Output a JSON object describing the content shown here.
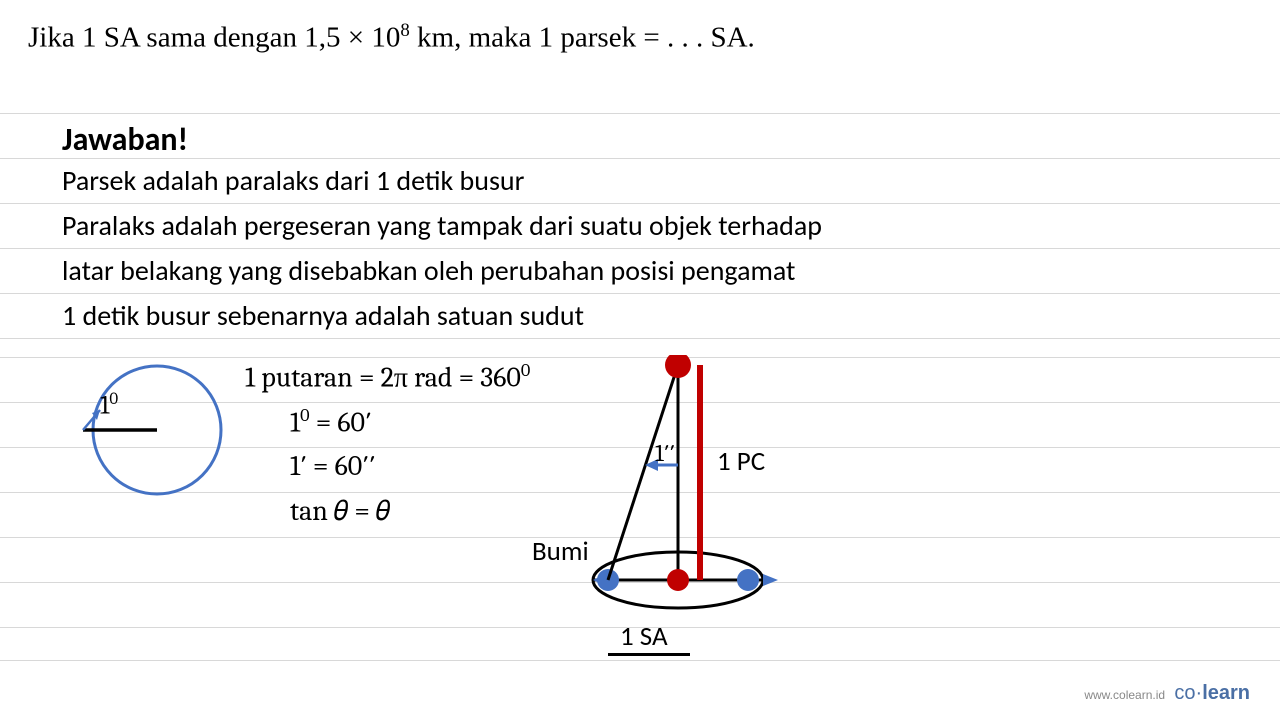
{
  "question": {
    "prefix": "Jika 1 SA sama dengan 1,5 × 10",
    "exp": "8",
    "suffix": " km, maka 1 parsek = . . . SA."
  },
  "answer_label": "Jawaban!",
  "lines": {
    "l1": "Parsek adalah paralaks dari 1 detik busur",
    "l2": "Paralaks adalah pergeseran yang tampak dari suatu objek terhadap",
    "l3": "latar belakang yang disebabkan oleh perubahan posisi pengamat",
    "l4": "1 detik busur sebenarnya adalah satuan sudut"
  },
  "math": {
    "m1_pre": "1 putaran = 2π rad = 360",
    "m1_exp": "0",
    "m2_pre": "1",
    "m2_exp": "0",
    "m2_post": " = 60′",
    "m3": "1′ = 60′′",
    "m4": "tan 𝜃 = 𝜃"
  },
  "circle": {
    "label_pre": "1",
    "label_exp": "0",
    "stroke": "#4472c4",
    "stroke_width": 3
  },
  "parallax": {
    "pc_label": "1 PC",
    "bumi_label": "Bumi",
    "sa_label": "1 SA",
    "arc_label": "1′′",
    "red": "#c00000",
    "blue": "#4472c4",
    "pc_line_color": "#c00000"
  },
  "ruled": {
    "color": "#d8d8d8",
    "positions": [
      113,
      158,
      203,
      248,
      293,
      338,
      357,
      402,
      447,
      492,
      537,
      582,
      627,
      660
    ]
  },
  "footer": {
    "url": "www.colearn.id",
    "brand_pre": "co",
    "brand_dot": "·",
    "brand_post": "learn"
  }
}
